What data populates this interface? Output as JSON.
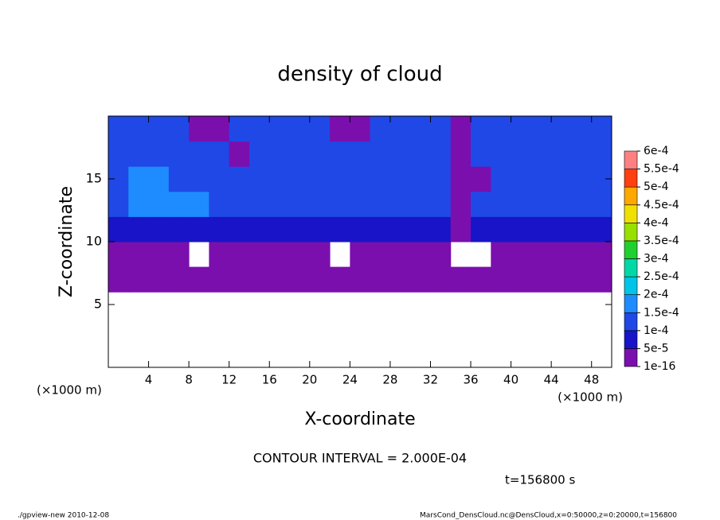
{
  "chart_data": {
    "type": "contour",
    "title": "density of cloud",
    "xlabel": "X-coordinate",
    "ylabel": "Z-coordinate",
    "xunit": "(×1000 m)",
    "xunit_right": "(×1000 m)",
    "contour_interval": "CONTOUR INTERVAL = 2.000E-04",
    "time_label": "t=156800 s",
    "footer_left": "./gpview-new  2010-12-08",
    "footer_right": "MarsCond_DensCloud.nc@DensCloud,x=0:50000,z=0:20000,t=156800",
    "xlim": [
      0,
      50
    ],
    "ylim": [
      0,
      20
    ],
    "xticks": [
      4,
      8,
      12,
      16,
      20,
      24,
      28,
      32,
      36,
      40,
      44,
      48
    ],
    "yticks": [
      5,
      10,
      15
    ],
    "xbins": [
      0,
      2,
      4,
      6,
      8,
      10,
      12,
      14,
      16,
      18,
      20,
      22,
      24,
      26,
      28,
      30,
      32,
      34,
      36,
      38,
      40,
      42,
      44,
      46,
      48,
      50
    ],
    "zbins": [
      0,
      2,
      4,
      6,
      8,
      10,
      12,
      14,
      16,
      18,
      20
    ],
    "values": [
      [
        null,
        null,
        null,
        null,
        null,
        null,
        null,
        null,
        null,
        null,
        null,
        null,
        null,
        null,
        null,
        null,
        null,
        null,
        null,
        null,
        null,
        null,
        null,
        null,
        null
      ],
      [
        null,
        null,
        null,
        null,
        null,
        null,
        null,
        null,
        null,
        null,
        null,
        null,
        null,
        null,
        null,
        null,
        null,
        null,
        null,
        null,
        null,
        null,
        null,
        null,
        null
      ],
      [
        null,
        null,
        null,
        null,
        null,
        null,
        null,
        null,
        null,
        null,
        null,
        null,
        null,
        null,
        null,
        null,
        null,
        null,
        null,
        null,
        null,
        null,
        null,
        null,
        null
      ],
      [
        2e-05,
        2e-05,
        2e-05,
        2e-05,
        2e-05,
        2e-05,
        2e-05,
        2e-05,
        2e-05,
        2e-05,
        2e-05,
        2e-05,
        2e-05,
        2e-05,
        2e-05,
        2e-05,
        2e-05,
        2e-05,
        2e-05,
        2e-05,
        2e-05,
        2e-05,
        2e-05,
        2e-05,
        2e-05
      ],
      [
        2e-05,
        2e-05,
        2e-05,
        2e-05,
        null,
        2e-05,
        2e-05,
        2e-05,
        2e-05,
        2e-05,
        2e-05,
        null,
        2e-05,
        2e-05,
        2e-05,
        2e-05,
        2e-05,
        null,
        null,
        2e-05,
        2e-05,
        2e-05,
        2e-05,
        2e-05,
        2e-05
      ],
      [
        7e-05,
        7e-05,
        7e-05,
        7e-05,
        7e-05,
        7e-05,
        7e-05,
        7e-05,
        7e-05,
        7e-05,
        7e-05,
        7e-05,
        7e-05,
        7e-05,
        7e-05,
        7e-05,
        7e-05,
        2e-05,
        7e-05,
        7e-05,
        7e-05,
        7e-05,
        7e-05,
        7e-05,
        7e-05
      ],
      [
        0.00012,
        0.00017,
        0.00017,
        0.00017,
        0.00017,
        0.00012,
        0.00012,
        0.00012,
        0.00012,
        0.00012,
        0.00012,
        0.00012,
        0.00012,
        0.00012,
        0.00012,
        0.00012,
        0.00012,
        2e-05,
        0.00012,
        0.00012,
        0.00012,
        0.00012,
        0.00012,
        0.00012,
        0.00012
      ],
      [
        0.00012,
        0.00017,
        0.00017,
        0.00012,
        0.00012,
        0.00012,
        0.00012,
        0.00012,
        0.00012,
        0.00012,
        0.00012,
        0.00012,
        0.00012,
        0.00012,
        0.00012,
        0.00012,
        0.00012,
        2e-05,
        2e-05,
        0.00012,
        0.00012,
        0.00012,
        0.00012,
        0.00012,
        0.00012
      ],
      [
        0.00012,
        0.00012,
        0.00012,
        0.00012,
        0.00012,
        0.00012,
        2e-05,
        0.00012,
        0.00012,
        0.00012,
        0.00012,
        0.00012,
        0.00012,
        0.00012,
        0.00012,
        0.00012,
        0.00012,
        2e-05,
        0.00012,
        0.00012,
        0.00012,
        0.00012,
        0.00012,
        0.00012,
        0.00012
      ],
      [
        0.00012,
        0.00012,
        0.00012,
        0.00012,
        2e-05,
        2e-05,
        0.00012,
        0.00012,
        0.00012,
        0.00012,
        0.00012,
        2e-05,
        2e-05,
        0.00012,
        0.00012,
        0.00012,
        0.00012,
        2e-05,
        0.00012,
        0.00012,
        0.00012,
        0.00012,
        0.00012,
        0.00012,
        0.00012
      ]
    ],
    "levels": [
      {
        "value": 1e-16,
        "label": "1e-16"
      },
      {
        "value": 5e-05,
        "label": "5e-5"
      },
      {
        "value": 0.0001,
        "label": "1e-4"
      },
      {
        "value": 0.00015,
        "label": "1.5e-4"
      },
      {
        "value": 0.0002,
        "label": "2e-4"
      },
      {
        "value": 0.00025,
        "label": "2.5e-4"
      },
      {
        "value": 0.0003,
        "label": "3e-4"
      },
      {
        "value": 0.00035,
        "label": "3.5e-4"
      },
      {
        "value": 0.0004,
        "label": "4e-4"
      },
      {
        "value": 0.00045,
        "label": "4.5e-4"
      },
      {
        "value": 0.0005,
        "label": "5e-4"
      },
      {
        "value": 0.00055,
        "label": "5.5e-4"
      },
      {
        "value": 0.0006,
        "label": "6e-4"
      }
    ],
    "colors": [
      "#7a0fae",
      "#1a14c8",
      "#2048e6",
      "#1e8cff",
      "#00c4e8",
      "#00d8a8",
      "#20d030",
      "#98e000",
      "#f0e000",
      "#ffa800",
      "#ff4010",
      "#ff8080"
    ]
  }
}
